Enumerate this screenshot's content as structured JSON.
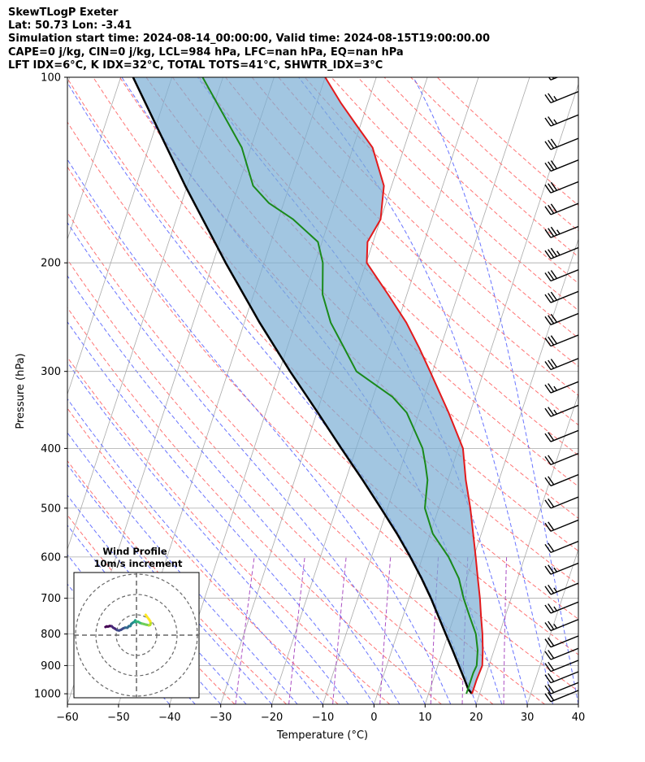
{
  "header": {
    "line1": "SkewTLogP Exeter",
    "line2": "Lat: 50.73   Lon: -3.41",
    "line3": "Simulation start time: 2024-08-14_00:00:00, Valid time: 2024-08-15T19:00:00.00",
    "line4": "CAPE=0 j/kg, CIN=0 j/kg, LCL=984 hPa, LFC=nan hPa, EQ=nan hPa",
    "line5": "LFT IDX=6°C, K IDX=32°C, TOTAL TOTS=41°C, SHWTR_IDX=3°C"
  },
  "colors": {
    "temperature": "#e31a1c",
    "dewpoint": "#1a8a1a",
    "parcel": "#000000",
    "cape_fill": "#7aaed4",
    "dry_adiabat": "#ff5a5a",
    "moist_adiabat": "#4f5cff",
    "mixing_ratio": "#9c2fb8",
    "isotherm": "#a9a9a9"
  },
  "chart_data": [
    {
      "type": "line",
      "title": "",
      "xlabel": "Temperature (°C)",
      "ylabel": "Pressure (hPa)",
      "xlim": [
        -60,
        40
      ],
      "ylim": [
        1040,
        100
      ],
      "y_scale": "log",
      "x_ticks": [
        -60,
        -50,
        -40,
        -30,
        -20,
        -10,
        0,
        10,
        20,
        30,
        40
      ],
      "x_tick_labels": [
        "−60",
        "−50",
        "−40",
        "−30",
        "−20",
        "−10",
        "0",
        "10",
        "20",
        "30",
        "40"
      ],
      "y_ticks": [
        100,
        200,
        300,
        400,
        500,
        600,
        700,
        800,
        900,
        1000
      ],
      "y_tick_labels": [
        "100",
        "200",
        "300",
        "400",
        "500",
        "600",
        "700",
        "800",
        "900",
        "1000"
      ],
      "grid": true,
      "series": [
        {
          "id": "temperature",
          "pressure": [
            1000,
            975,
            950,
            925,
            900,
            850,
            800,
            750,
            700,
            650,
            600,
            550,
            500,
            450,
            400,
            350,
            300,
            275,
            250,
            225,
            200,
            185,
            170,
            150,
            130,
            120,
            110,
            100
          ],
          "values": [
            18.5,
            18.5,
            18.5,
            18.6,
            18.7,
            17.8,
            16.7,
            15.3,
            13.9,
            12.2,
            10.4,
            8.4,
            6.2,
            3.5,
            0.9,
            -4.2,
            -10.5,
            -14.1,
            -18.3,
            -23.7,
            -29.9,
            -31.1,
            -30.0,
            -31.5,
            -36.2,
            -40.6,
            -45.3,
            -50.0
          ]
        },
        {
          "id": "dewpoint",
          "pressure": [
            1000,
            975,
            950,
            925,
            900,
            850,
            800,
            750,
            700,
            650,
            600,
            550,
            500,
            450,
            425,
            400,
            350,
            330,
            300,
            275,
            250,
            225,
            200,
            185,
            170,
            160,
            150,
            130,
            100
          ],
          "values": [
            17.4,
            17.4,
            17.4,
            17.4,
            17.6,
            16.8,
            15.4,
            13.1,
            10.7,
            8.5,
            5.1,
            0.5,
            -2.7,
            -4.0,
            -5.4,
            -7.0,
            -12.4,
            -16.2,
            -24.9,
            -28.8,
            -33.1,
            -36.5,
            -38.5,
            -40.8,
            -47.1,
            -52.9,
            -57.1,
            -61.8,
            -74.0
          ]
        },
        {
          "id": "parcel",
          "pressure": [
            1000,
            984,
            950,
            900,
            850,
            800,
            750,
            700,
            650,
            600,
            550,
            500,
            450,
            400,
            350,
            300,
            250,
            200,
            150,
            100
          ],
          "values": [
            18.5,
            17.5,
            16.2,
            14.1,
            11.9,
            9.5,
            7.0,
            4.3,
            1.2,
            -2.4,
            -6.5,
            -11.3,
            -16.7,
            -22.9,
            -29.8,
            -37.9,
            -47.0,
            -57.5,
            -70.4,
            -87.6
          ]
        }
      ],
      "wind_barbs": {
        "units": "kt",
        "pressure": [
          1030,
          1000,
          960,
          920,
          880,
          840,
          790,
          740,
          690,
          640,
          590,
          545,
          500,
          460,
          425,
          390,
          355,
          325,
          298,
          273,
          252,
          232,
          214,
          197,
          182,
          167,
          154,
          142,
          131,
          120,
          110,
          101
        ],
        "speed": [
          20,
          20,
          22,
          20,
          20,
          22,
          25,
          25,
          25,
          25,
          20,
          20,
          20,
          20,
          20,
          20,
          25,
          25,
          30,
          30,
          30,
          30,
          30,
          35,
          35,
          30,
          30,
          30,
          30,
          25,
          25,
          25
        ]
      }
    },
    {
      "type": "scatter",
      "title": "Wind Profile",
      "subtitle": "10m/s increment",
      "ring_step_ms": 10,
      "hodograph_u": [
        -15.3,
        -14.7,
        -14.0,
        -13.2,
        -12.2,
        -11.5,
        -10.6,
        -9.6,
        -8.6,
        -7.5,
        -6.6,
        -5.6,
        -4.5,
        -3.8,
        -3.0,
        -2.5,
        -1.8,
        -1.2,
        -0.7,
        -0.6,
        -0.4,
        0.0,
        0.8,
        1.7,
        2.7,
        3.6,
        4.5,
        5.5,
        6.1,
        6.7,
        7.0,
        6.8,
        6.0,
        5.2,
        4.5
      ],
      "hodograph_v": [
        4.0,
        4.3,
        4.2,
        4.5,
        4.4,
        3.7,
        3.2,
        2.5,
        2.3,
        2.7,
        3.3,
        3.7,
        3.6,
        4.4,
        4.5,
        5.6,
        6.1,
        6.5,
        6.8,
        7.3,
        6.4,
        6.7,
        6.6,
        6.0,
        5.7,
        5.5,
        5.2,
        5.0,
        4.8,
        5.0,
        5.8,
        6.8,
        8.0,
        9.0,
        10.0
      ]
    }
  ]
}
